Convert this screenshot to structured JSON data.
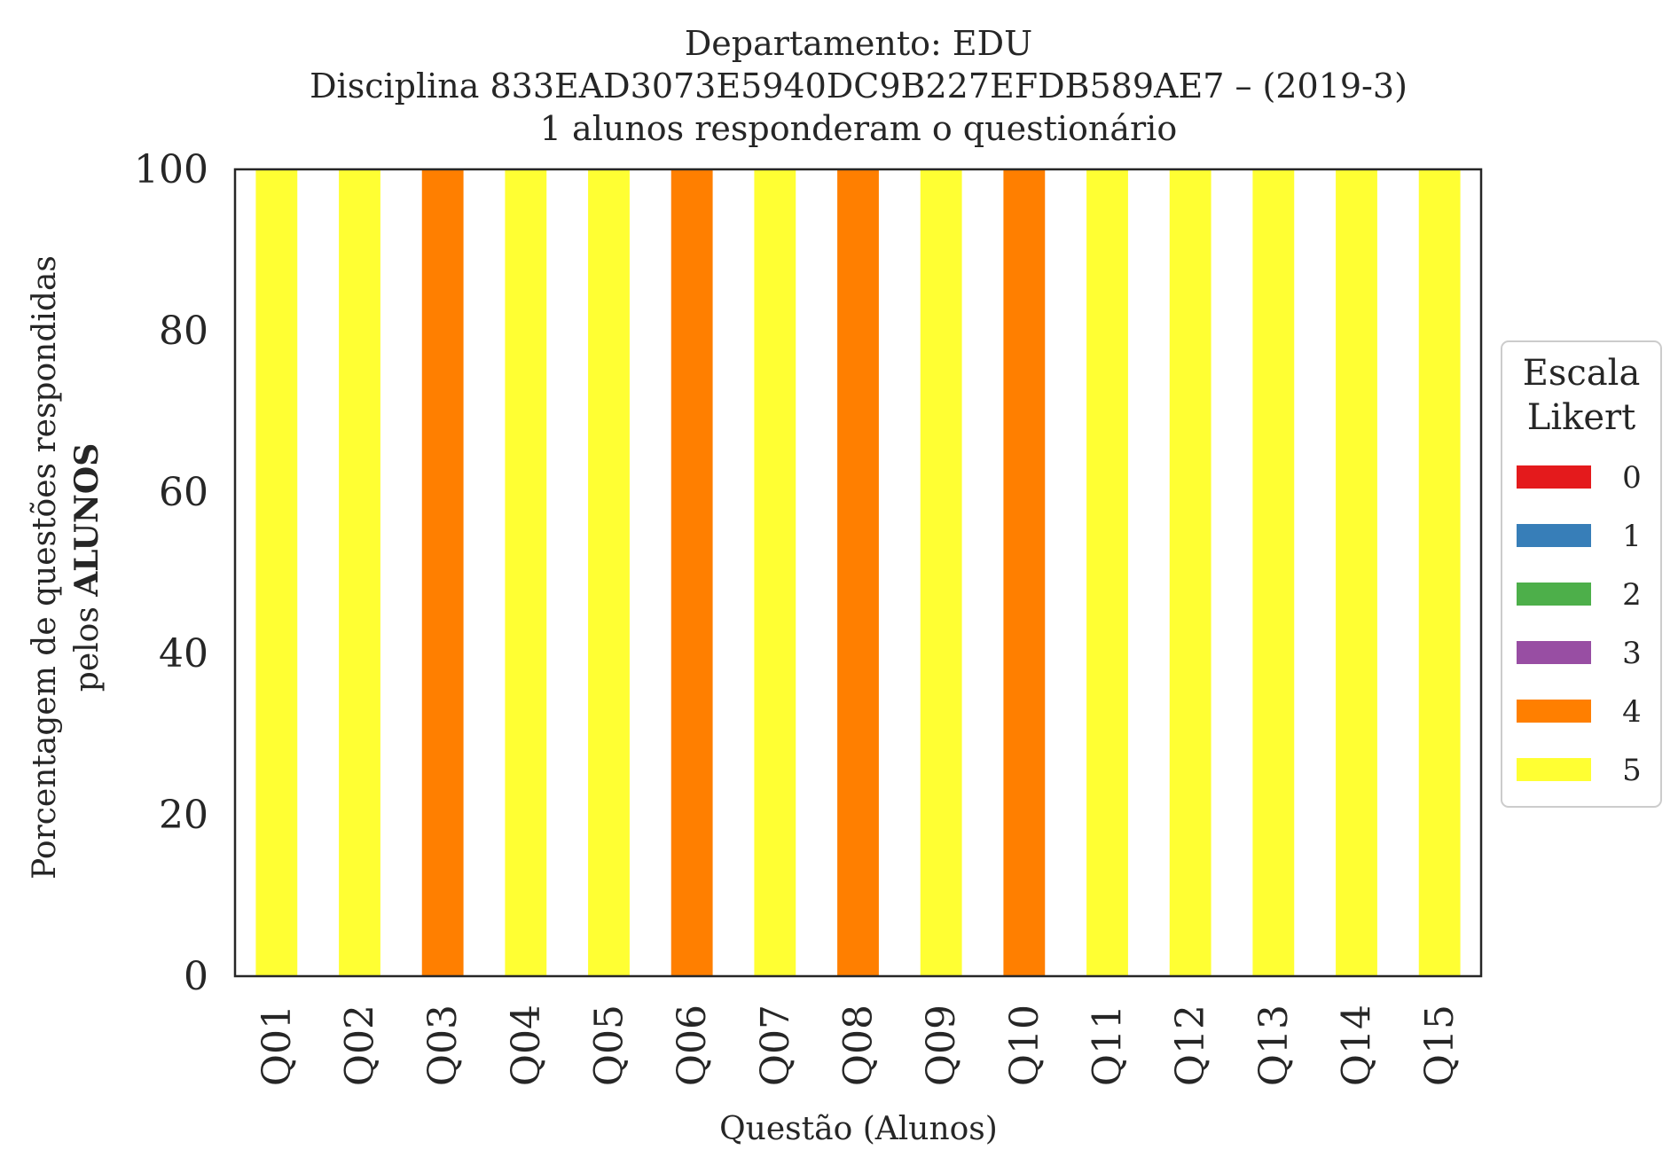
{
  "chart_data": {
    "type": "bar",
    "stacked": true,
    "title": [
      "Departamento: EDU",
      "Disciplina 833EAD3073E5940DC9B227EFDB589AE7 – (2019-3)",
      "1 alunos responderam o questionário"
    ],
    "xlabel": "Questão (Alunos)",
    "ylabel_line1": "Porcentagem de questões respondidas",
    "ylabel_line2_prefix": "pelos ",
    "ylabel_line2_bold": "ALUNOS",
    "ylim": [
      0,
      100
    ],
    "yticks": [
      "0",
      "20",
      "40",
      "60",
      "80",
      "100"
    ],
    "categories": [
      "Q01",
      "Q02",
      "Q03",
      "Q04",
      "Q05",
      "Q06",
      "Q07",
      "Q08",
      "Q09",
      "Q10",
      "Q11",
      "Q12",
      "Q13",
      "Q14",
      "Q15"
    ],
    "legend_title": [
      "Escala",
      "Likert"
    ],
    "legend_position": "right",
    "grid": false,
    "series": [
      {
        "name": "0",
        "color": "#e41a1c",
        "values": [
          0,
          0,
          0,
          0,
          0,
          0,
          0,
          0,
          0,
          0,
          0,
          0,
          0,
          0,
          0
        ]
      },
      {
        "name": "1",
        "color": "#377eb8",
        "values": [
          0,
          0,
          0,
          0,
          0,
          0,
          0,
          0,
          0,
          0,
          0,
          0,
          0,
          0,
          0
        ]
      },
      {
        "name": "2",
        "color": "#4daf4a",
        "values": [
          0,
          0,
          0,
          0,
          0,
          0,
          0,
          0,
          0,
          0,
          0,
          0,
          0,
          0,
          0
        ]
      },
      {
        "name": "3",
        "color": "#984ea3",
        "values": [
          0,
          0,
          0,
          0,
          0,
          0,
          0,
          0,
          0,
          0,
          0,
          0,
          0,
          0,
          0
        ]
      },
      {
        "name": "4",
        "color": "#ff7f00",
        "values": [
          0,
          0,
          100,
          0,
          0,
          100,
          0,
          100,
          0,
          100,
          0,
          0,
          0,
          0,
          0
        ]
      },
      {
        "name": "5",
        "color": "#ffff33",
        "values": [
          100,
          100,
          0,
          100,
          100,
          0,
          100,
          0,
          100,
          0,
          100,
          100,
          100,
          100,
          100
        ]
      }
    ]
  }
}
